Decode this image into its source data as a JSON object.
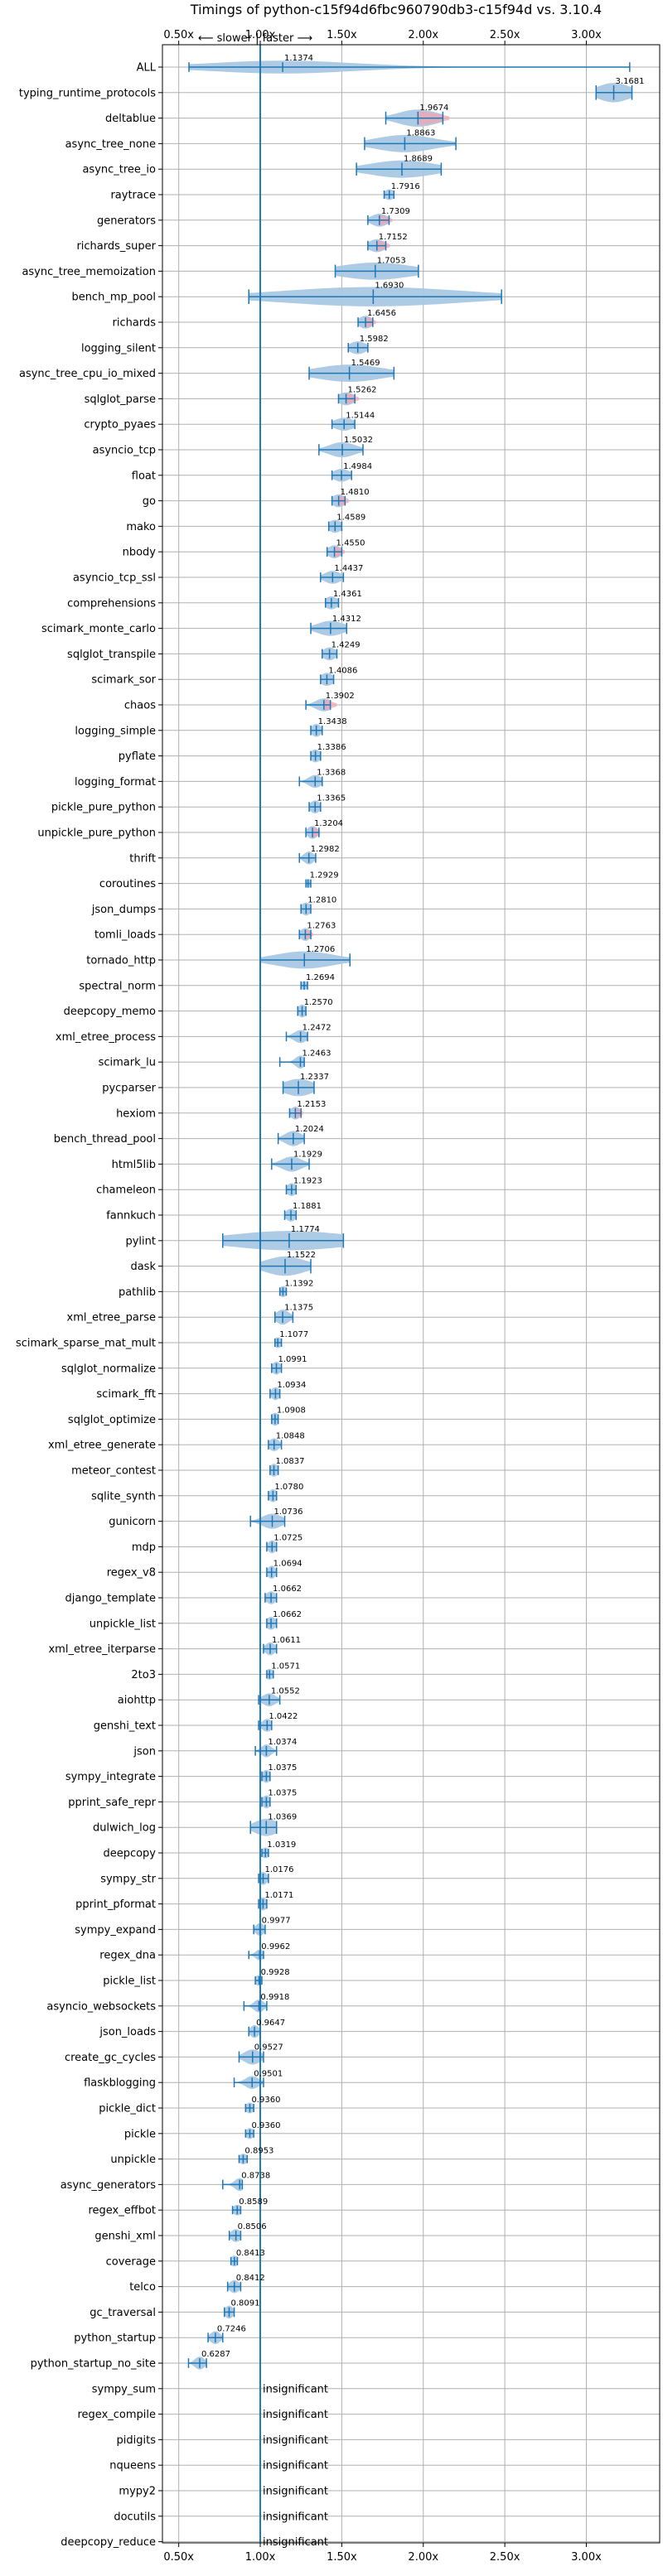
{
  "chart_data": {
    "type": "violin",
    "title": "Timings of python-c15f94d6fbc960790db3-c15f94d vs. 3.10.4",
    "direction_label": "⟵ slower | faster ⟶",
    "xlim": [
      0.4,
      3.45
    ],
    "xticks": [
      {
        "value": 0.5,
        "label": "0.50x"
      },
      {
        "value": 1.0,
        "label": "1.00x"
      },
      {
        "value": 1.5,
        "label": "1.50x"
      },
      {
        "value": 2.0,
        "label": "2.00x"
      },
      {
        "value": 2.5,
        "label": "2.50x"
      },
      {
        "value": 3.0,
        "label": "3.00x"
      }
    ],
    "reference_line": 1.0,
    "grid": true,
    "violin_color": "#a9c8e3",
    "slower_violin_color": "#f4a4b0",
    "line_color": "#1f77b4",
    "insignificant_text": "insignificant",
    "benchmarks": [
      {
        "name": "ALL",
        "value": 1.1374,
        "label": "1.1374",
        "min": 0.5628,
        "max": 3.2662,
        "spread": 0.45,
        "thick": 0.6
      },
      {
        "name": "typing_runtime_protocols",
        "value": 3.1681,
        "label": "3.1681",
        "min": 3.06,
        "max": 3.28,
        "spread": 0.1,
        "thick": 0.9
      },
      {
        "name": "deltablue",
        "value": 1.9674,
        "label": "1.9674",
        "min": 1.77,
        "max": 2.12,
        "spread": 0.12,
        "thick": 0.8,
        "slower_tail": true
      },
      {
        "name": "async_tree_none",
        "value": 1.8863,
        "label": "1.8863",
        "min": 1.64,
        "max": 2.2,
        "spread": 0.18,
        "thick": 0.8
      },
      {
        "name": "async_tree_io",
        "value": 1.8689,
        "label": "1.8689",
        "min": 1.59,
        "max": 2.11,
        "spread": 0.2,
        "thick": 0.8
      },
      {
        "name": "raytrace",
        "value": 1.7916,
        "label": "1.7916",
        "min": 1.76,
        "max": 1.82,
        "spread": 0.03,
        "thick": 0.5
      },
      {
        "name": "generators",
        "value": 1.7309,
        "label": "1.7309",
        "min": 1.66,
        "max": 1.79,
        "spread": 0.05,
        "thick": 0.6,
        "slower_tail": true
      },
      {
        "name": "richards_super",
        "value": 1.7152,
        "label": "1.7152",
        "min": 1.66,
        "max": 1.77,
        "spread": 0.05,
        "thick": 0.6,
        "slower_tail": true
      },
      {
        "name": "async_tree_memoization",
        "value": 1.7053,
        "label": "1.7053",
        "min": 1.46,
        "max": 1.97,
        "spread": 0.22,
        "thick": 0.8
      },
      {
        "name": "bench_mp_pool",
        "value": 1.693,
        "label": "1.6930",
        "min": 0.93,
        "max": 2.48,
        "spread": 0.55,
        "thick": 0.9
      },
      {
        "name": "richards",
        "value": 1.6456,
        "label": "1.6456",
        "min": 1.6,
        "max": 1.69,
        "spread": 0.04,
        "thick": 0.6,
        "slower_tail": true
      },
      {
        "name": "logging_silent",
        "value": 1.5982,
        "label": "1.5982",
        "min": 1.54,
        "max": 1.66,
        "spread": 0.05,
        "thick": 0.6
      },
      {
        "name": "async_tree_cpu_io_mixed",
        "value": 1.5469,
        "label": "1.5469",
        "min": 1.3,
        "max": 1.82,
        "spread": 0.2,
        "thick": 0.8
      },
      {
        "name": "sqlglot_parse",
        "value": 1.5262,
        "label": "1.5262",
        "min": 1.48,
        "max": 1.58,
        "spread": 0.05,
        "thick": 0.6,
        "slower_tail": true
      },
      {
        "name": "crypto_pyaes",
        "value": 1.5144,
        "label": "1.5144",
        "min": 1.44,
        "max": 1.58,
        "spread": 0.06,
        "thick": 0.6
      },
      {
        "name": "asyncio_tcp",
        "value": 1.5032,
        "label": "1.5032",
        "min": 1.36,
        "max": 1.63,
        "spread": 0.08,
        "thick": 0.7
      },
      {
        "name": "float",
        "value": 1.4984,
        "label": "1.4984",
        "min": 1.44,
        "max": 1.56,
        "spread": 0.05,
        "thick": 0.6
      },
      {
        "name": "go",
        "value": 1.481,
        "label": "1.4810",
        "min": 1.44,
        "max": 1.52,
        "spread": 0.04,
        "thick": 0.6,
        "slower_tail": true
      },
      {
        "name": "mako",
        "value": 1.4589,
        "label": "1.4589",
        "min": 1.42,
        "max": 1.5,
        "spread": 0.04,
        "thick": 0.6
      },
      {
        "name": "nbody",
        "value": 1.455,
        "label": "1.4550",
        "min": 1.41,
        "max": 1.5,
        "spread": 0.04,
        "thick": 0.6,
        "slower_tail": true
      },
      {
        "name": "asyncio_tcp_ssl",
        "value": 1.4437,
        "label": "1.4437",
        "min": 1.37,
        "max": 1.51,
        "spread": 0.05,
        "thick": 0.6
      },
      {
        "name": "comprehensions",
        "value": 1.4361,
        "label": "1.4361",
        "min": 1.4,
        "max": 1.48,
        "spread": 0.04,
        "thick": 0.6
      },
      {
        "name": "scimark_monte_carlo",
        "value": 1.4312,
        "label": "1.4312",
        "min": 1.31,
        "max": 1.53,
        "spread": 0.08,
        "thick": 0.7
      },
      {
        "name": "sqlglot_transpile",
        "value": 1.4249,
        "label": "1.4249",
        "min": 1.38,
        "max": 1.47,
        "spread": 0.04,
        "thick": 0.6
      },
      {
        "name": "scimark_sor",
        "value": 1.4086,
        "label": "1.4086",
        "min": 1.37,
        "max": 1.45,
        "spread": 0.04,
        "thick": 0.6
      },
      {
        "name": "chaos",
        "value": 1.3902,
        "label": "1.3902",
        "min": 1.28,
        "max": 1.43,
        "spread": 0.05,
        "thick": 0.6,
        "slower_tail": true
      },
      {
        "name": "logging_simple",
        "value": 1.3438,
        "label": "1.3438",
        "min": 1.31,
        "max": 1.38,
        "spread": 0.03,
        "thick": 0.6
      },
      {
        "name": "pyflate",
        "value": 1.3386,
        "label": "1.3386",
        "min": 1.31,
        "max": 1.37,
        "spread": 0.03,
        "thick": 0.6
      },
      {
        "name": "logging_format",
        "value": 1.3368,
        "label": "1.3368",
        "min": 1.24,
        "max": 1.38,
        "spread": 0.04,
        "thick": 0.6
      },
      {
        "name": "pickle_pure_python",
        "value": 1.3365,
        "label": "1.3365",
        "min": 1.3,
        "max": 1.37,
        "spread": 0.03,
        "thick": 0.6
      },
      {
        "name": "unpickle_pure_python",
        "value": 1.3204,
        "label": "1.3204",
        "min": 1.28,
        "max": 1.36,
        "spread": 0.03,
        "thick": 0.6,
        "slower_tail": true
      },
      {
        "name": "thrift",
        "value": 1.2982,
        "label": "1.2982",
        "min": 1.24,
        "max": 1.34,
        "spread": 0.03,
        "thick": 0.6
      },
      {
        "name": "coroutines",
        "value": 1.2929,
        "label": "1.2929",
        "min": 1.28,
        "max": 1.31,
        "spread": 0.02,
        "thick": 0.4
      },
      {
        "name": "json_dumps",
        "value": 1.281,
        "label": "1.2810",
        "min": 1.25,
        "max": 1.31,
        "spread": 0.03,
        "thick": 0.6
      },
      {
        "name": "tomli_loads",
        "value": 1.2763,
        "label": "1.2763",
        "min": 1.24,
        "max": 1.31,
        "spread": 0.03,
        "thick": 0.6,
        "slower_tail": true
      },
      {
        "name": "tornado_http",
        "value": 1.2706,
        "label": "1.2706",
        "min": 1.0,
        "max": 1.55,
        "spread": 0.18,
        "thick": 0.8
      },
      {
        "name": "spectral_norm",
        "value": 1.2694,
        "label": "1.2694",
        "min": 1.25,
        "max": 1.29,
        "spread": 0.02,
        "thick": 0.4
      },
      {
        "name": "deepcopy_memo",
        "value": 1.257,
        "label": "1.2570",
        "min": 1.23,
        "max": 1.28,
        "spread": 0.02,
        "thick": 0.6
      },
      {
        "name": "xml_etree_process",
        "value": 1.2472,
        "label": "1.2472",
        "min": 1.16,
        "max": 1.29,
        "spread": 0.04,
        "thick": 0.6
      },
      {
        "name": "scimark_lu",
        "value": 1.2463,
        "label": "1.2463",
        "min": 1.12,
        "max": 1.27,
        "spread": 0.03,
        "thick": 0.6
      },
      {
        "name": "pycparser",
        "value": 1.2337,
        "label": "1.2337",
        "min": 1.14,
        "max": 1.33,
        "spread": 0.09,
        "thick": 0.8
      },
      {
        "name": "hexiom",
        "value": 1.2153,
        "label": "1.2153",
        "min": 1.18,
        "max": 1.25,
        "spread": 0.03,
        "thick": 0.6,
        "slower_tail": true
      },
      {
        "name": "bench_thread_pool",
        "value": 1.2024,
        "label": "1.2024",
        "min": 1.11,
        "max": 1.27,
        "spread": 0.05,
        "thick": 0.7
      },
      {
        "name": "html5lib",
        "value": 1.1929,
        "label": "1.1929",
        "min": 1.07,
        "max": 1.3,
        "spread": 0.06,
        "thick": 0.7
      },
      {
        "name": "chameleon",
        "value": 1.1923,
        "label": "1.1923",
        "min": 1.16,
        "max": 1.22,
        "spread": 0.03,
        "thick": 0.6
      },
      {
        "name": "fannkuch",
        "value": 1.1881,
        "label": "1.1881",
        "min": 1.15,
        "max": 1.22,
        "spread": 0.03,
        "thick": 0.6
      },
      {
        "name": "pylint",
        "value": 1.1774,
        "label": "1.1774",
        "min": 0.77,
        "max": 1.51,
        "spread": 0.36,
        "thick": 0.9
      },
      {
        "name": "dask",
        "value": 1.1522,
        "label": "1.1522",
        "min": 1.0,
        "max": 1.31,
        "spread": 0.12,
        "thick": 0.9
      },
      {
        "name": "pathlib",
        "value": 1.1392,
        "label": "1.1392",
        "min": 1.12,
        "max": 1.16,
        "spread": 0.02,
        "thick": 0.5
      },
      {
        "name": "xml_etree_parse",
        "value": 1.1375,
        "label": "1.1375",
        "min": 1.09,
        "max": 1.2,
        "spread": 0.04,
        "thick": 0.7
      },
      {
        "name": "scimark_sparse_mat_mult",
        "value": 1.1077,
        "label": "1.1077",
        "min": 1.09,
        "max": 1.13,
        "spread": 0.02,
        "thick": 0.5
      },
      {
        "name": "sqlglot_normalize",
        "value": 1.0991,
        "label": "1.0991",
        "min": 1.07,
        "max": 1.13,
        "spread": 0.02,
        "thick": 0.6
      },
      {
        "name": "scimark_fft",
        "value": 1.0934,
        "label": "1.0934",
        "min": 1.06,
        "max": 1.12,
        "spread": 0.02,
        "thick": 0.6
      },
      {
        "name": "sqlglot_optimize",
        "value": 1.0908,
        "label": "1.0908",
        "min": 1.07,
        "max": 1.11,
        "spread": 0.02,
        "thick": 0.6
      },
      {
        "name": "xml_etree_generate",
        "value": 1.0848,
        "label": "1.0848",
        "min": 1.05,
        "max": 1.13,
        "spread": 0.03,
        "thick": 0.6
      },
      {
        "name": "meteor_contest",
        "value": 1.0837,
        "label": "1.0837",
        "min": 1.06,
        "max": 1.11,
        "spread": 0.02,
        "thick": 0.6
      },
      {
        "name": "sqlite_synth",
        "value": 1.078,
        "label": "1.0780",
        "min": 1.05,
        "max": 1.1,
        "spread": 0.02,
        "thick": 0.6
      },
      {
        "name": "gunicorn",
        "value": 1.0736,
        "label": "1.0736",
        "min": 0.94,
        "max": 1.15,
        "spread": 0.06,
        "thick": 0.7
      },
      {
        "name": "mdp",
        "value": 1.0725,
        "label": "1.0725",
        "min": 1.04,
        "max": 1.1,
        "spread": 0.02,
        "thick": 0.6
      },
      {
        "name": "regex_v8",
        "value": 1.0694,
        "label": "1.0694",
        "min": 1.04,
        "max": 1.1,
        "spread": 0.02,
        "thick": 0.6
      },
      {
        "name": "django_template",
        "value": 1.0662,
        "label": "1.0662",
        "min": 1.03,
        "max": 1.1,
        "spread": 0.03,
        "thick": 0.6
      },
      {
        "name": "unpickle_list",
        "value": 1.0662,
        "label": "1.0662",
        "min": 1.04,
        "max": 1.1,
        "spread": 0.03,
        "thick": 0.6
      },
      {
        "name": "xml_etree_iterparse",
        "value": 1.0611,
        "label": "1.0611",
        "min": 1.02,
        "max": 1.1,
        "spread": 0.03,
        "thick": 0.6
      },
      {
        "name": "2to3",
        "value": 1.0571,
        "label": "1.0571",
        "min": 1.04,
        "max": 1.08,
        "spread": 0.02,
        "thick": 0.5
      },
      {
        "name": "aiohttp",
        "value": 1.0552,
        "label": "1.0552",
        "min": 0.99,
        "max": 1.12,
        "spread": 0.04,
        "thick": 0.6
      },
      {
        "name": "genshi_text",
        "value": 1.0422,
        "label": "1.0422",
        "min": 0.99,
        "max": 1.07,
        "spread": 0.03,
        "thick": 0.6
      },
      {
        "name": "json",
        "value": 1.0374,
        "label": "1.0374",
        "min": 0.97,
        "max": 1.1,
        "spread": 0.03,
        "thick": 0.6
      },
      {
        "name": "sympy_integrate",
        "value": 1.0375,
        "label": "1.0375",
        "min": 1.01,
        "max": 1.06,
        "spread": 0.02,
        "thick": 0.6
      },
      {
        "name": "pprint_safe_repr",
        "value": 1.0375,
        "label": "1.0375",
        "min": 1.01,
        "max": 1.06,
        "spread": 0.02,
        "thick": 0.6
      },
      {
        "name": "dulwich_log",
        "value": 1.0369,
        "label": "1.0369",
        "min": 0.94,
        "max": 1.1,
        "spread": 0.07,
        "thick": 0.8
      },
      {
        "name": "deepcopy",
        "value": 1.0319,
        "label": "1.0319",
        "min": 1.01,
        "max": 1.05,
        "spread": 0.02,
        "thick": 0.5
      },
      {
        "name": "sympy_str",
        "value": 1.0176,
        "label": "1.0176",
        "min": 0.99,
        "max": 1.05,
        "spread": 0.02,
        "thick": 0.6
      },
      {
        "name": "pprint_pformat",
        "value": 1.0171,
        "label": "1.0171",
        "min": 0.99,
        "max": 1.04,
        "spread": 0.02,
        "thick": 0.6
      },
      {
        "name": "sympy_expand",
        "value": 0.9977,
        "label": "0.9977",
        "min": 0.96,
        "max": 1.03,
        "spread": 0.02,
        "thick": 0.6
      },
      {
        "name": "regex_dna",
        "value": 0.9962,
        "label": "0.9962",
        "min": 0.93,
        "max": 1.02,
        "spread": 0.02,
        "thick": 0.5
      },
      {
        "name": "pickle_list",
        "value": 0.9928,
        "label": "0.9928",
        "min": 0.97,
        "max": 1.01,
        "spread": 0.02,
        "thick": 0.5
      },
      {
        "name": "asyncio_websockets",
        "value": 0.9918,
        "label": "0.9918",
        "min": 0.9,
        "max": 1.04,
        "spread": 0.03,
        "thick": 0.6
      },
      {
        "name": "json_loads",
        "value": 0.9647,
        "label": "0.9647",
        "min": 0.93,
        "max": 1.0,
        "spread": 0.02,
        "thick": 0.6
      },
      {
        "name": "create_gc_cycles",
        "value": 0.9527,
        "label": "0.9527",
        "min": 0.87,
        "max": 1.02,
        "spread": 0.05,
        "thick": 0.7
      },
      {
        "name": "flaskblogging",
        "value": 0.9501,
        "label": "0.9501",
        "min": 0.84,
        "max": 1.02,
        "spread": 0.04,
        "thick": 0.6
      },
      {
        "name": "pickle_dict",
        "value": 0.936,
        "label": "0.9360",
        "min": 0.91,
        "max": 0.96,
        "spread": 0.02,
        "thick": 0.5
      },
      {
        "name": "pickle",
        "value": 0.936,
        "label": "0.9360",
        "min": 0.91,
        "max": 0.96,
        "spread": 0.02,
        "thick": 0.5
      },
      {
        "name": "unpickle",
        "value": 0.8953,
        "label": "0.8953",
        "min": 0.87,
        "max": 0.92,
        "spread": 0.02,
        "thick": 0.5
      },
      {
        "name": "async_generators",
        "value": 0.8738,
        "label": "0.8738",
        "min": 0.77,
        "max": 0.89,
        "spread": 0.03,
        "thick": 0.6
      },
      {
        "name": "regex_effbot",
        "value": 0.8589,
        "label": "0.8589",
        "min": 0.83,
        "max": 0.88,
        "spread": 0.02,
        "thick": 0.5
      },
      {
        "name": "genshi_xml",
        "value": 0.8506,
        "label": "0.8506",
        "min": 0.81,
        "max": 0.88,
        "spread": 0.03,
        "thick": 0.6
      },
      {
        "name": "coverage",
        "value": 0.8413,
        "label": "0.8413",
        "min": 0.82,
        "max": 0.86,
        "spread": 0.02,
        "thick": 0.5
      },
      {
        "name": "telco",
        "value": 0.8412,
        "label": "0.8412",
        "min": 0.8,
        "max": 0.88,
        "spread": 0.03,
        "thick": 0.6
      },
      {
        "name": "gc_traversal",
        "value": 0.8091,
        "label": "0.8091",
        "min": 0.78,
        "max": 0.84,
        "spread": 0.02,
        "thick": 0.6
      },
      {
        "name": "python_startup",
        "value": 0.7246,
        "label": "0.7246",
        "min": 0.68,
        "max": 0.77,
        "spread": 0.03,
        "thick": 0.6
      },
      {
        "name": "python_startup_no_site",
        "value": 0.6287,
        "label": "0.6287",
        "min": 0.56,
        "max": 0.67,
        "spread": 0.03,
        "thick": 0.6
      },
      {
        "name": "sympy_sum",
        "insignificant": true
      },
      {
        "name": "regex_compile",
        "insignificant": true
      },
      {
        "name": "pidigits",
        "insignificant": true
      },
      {
        "name": "nqueens",
        "insignificant": true
      },
      {
        "name": "mypy2",
        "insignificant": true
      },
      {
        "name": "docutils",
        "insignificant": true
      },
      {
        "name": "deepcopy_reduce",
        "insignificant": true
      }
    ]
  }
}
